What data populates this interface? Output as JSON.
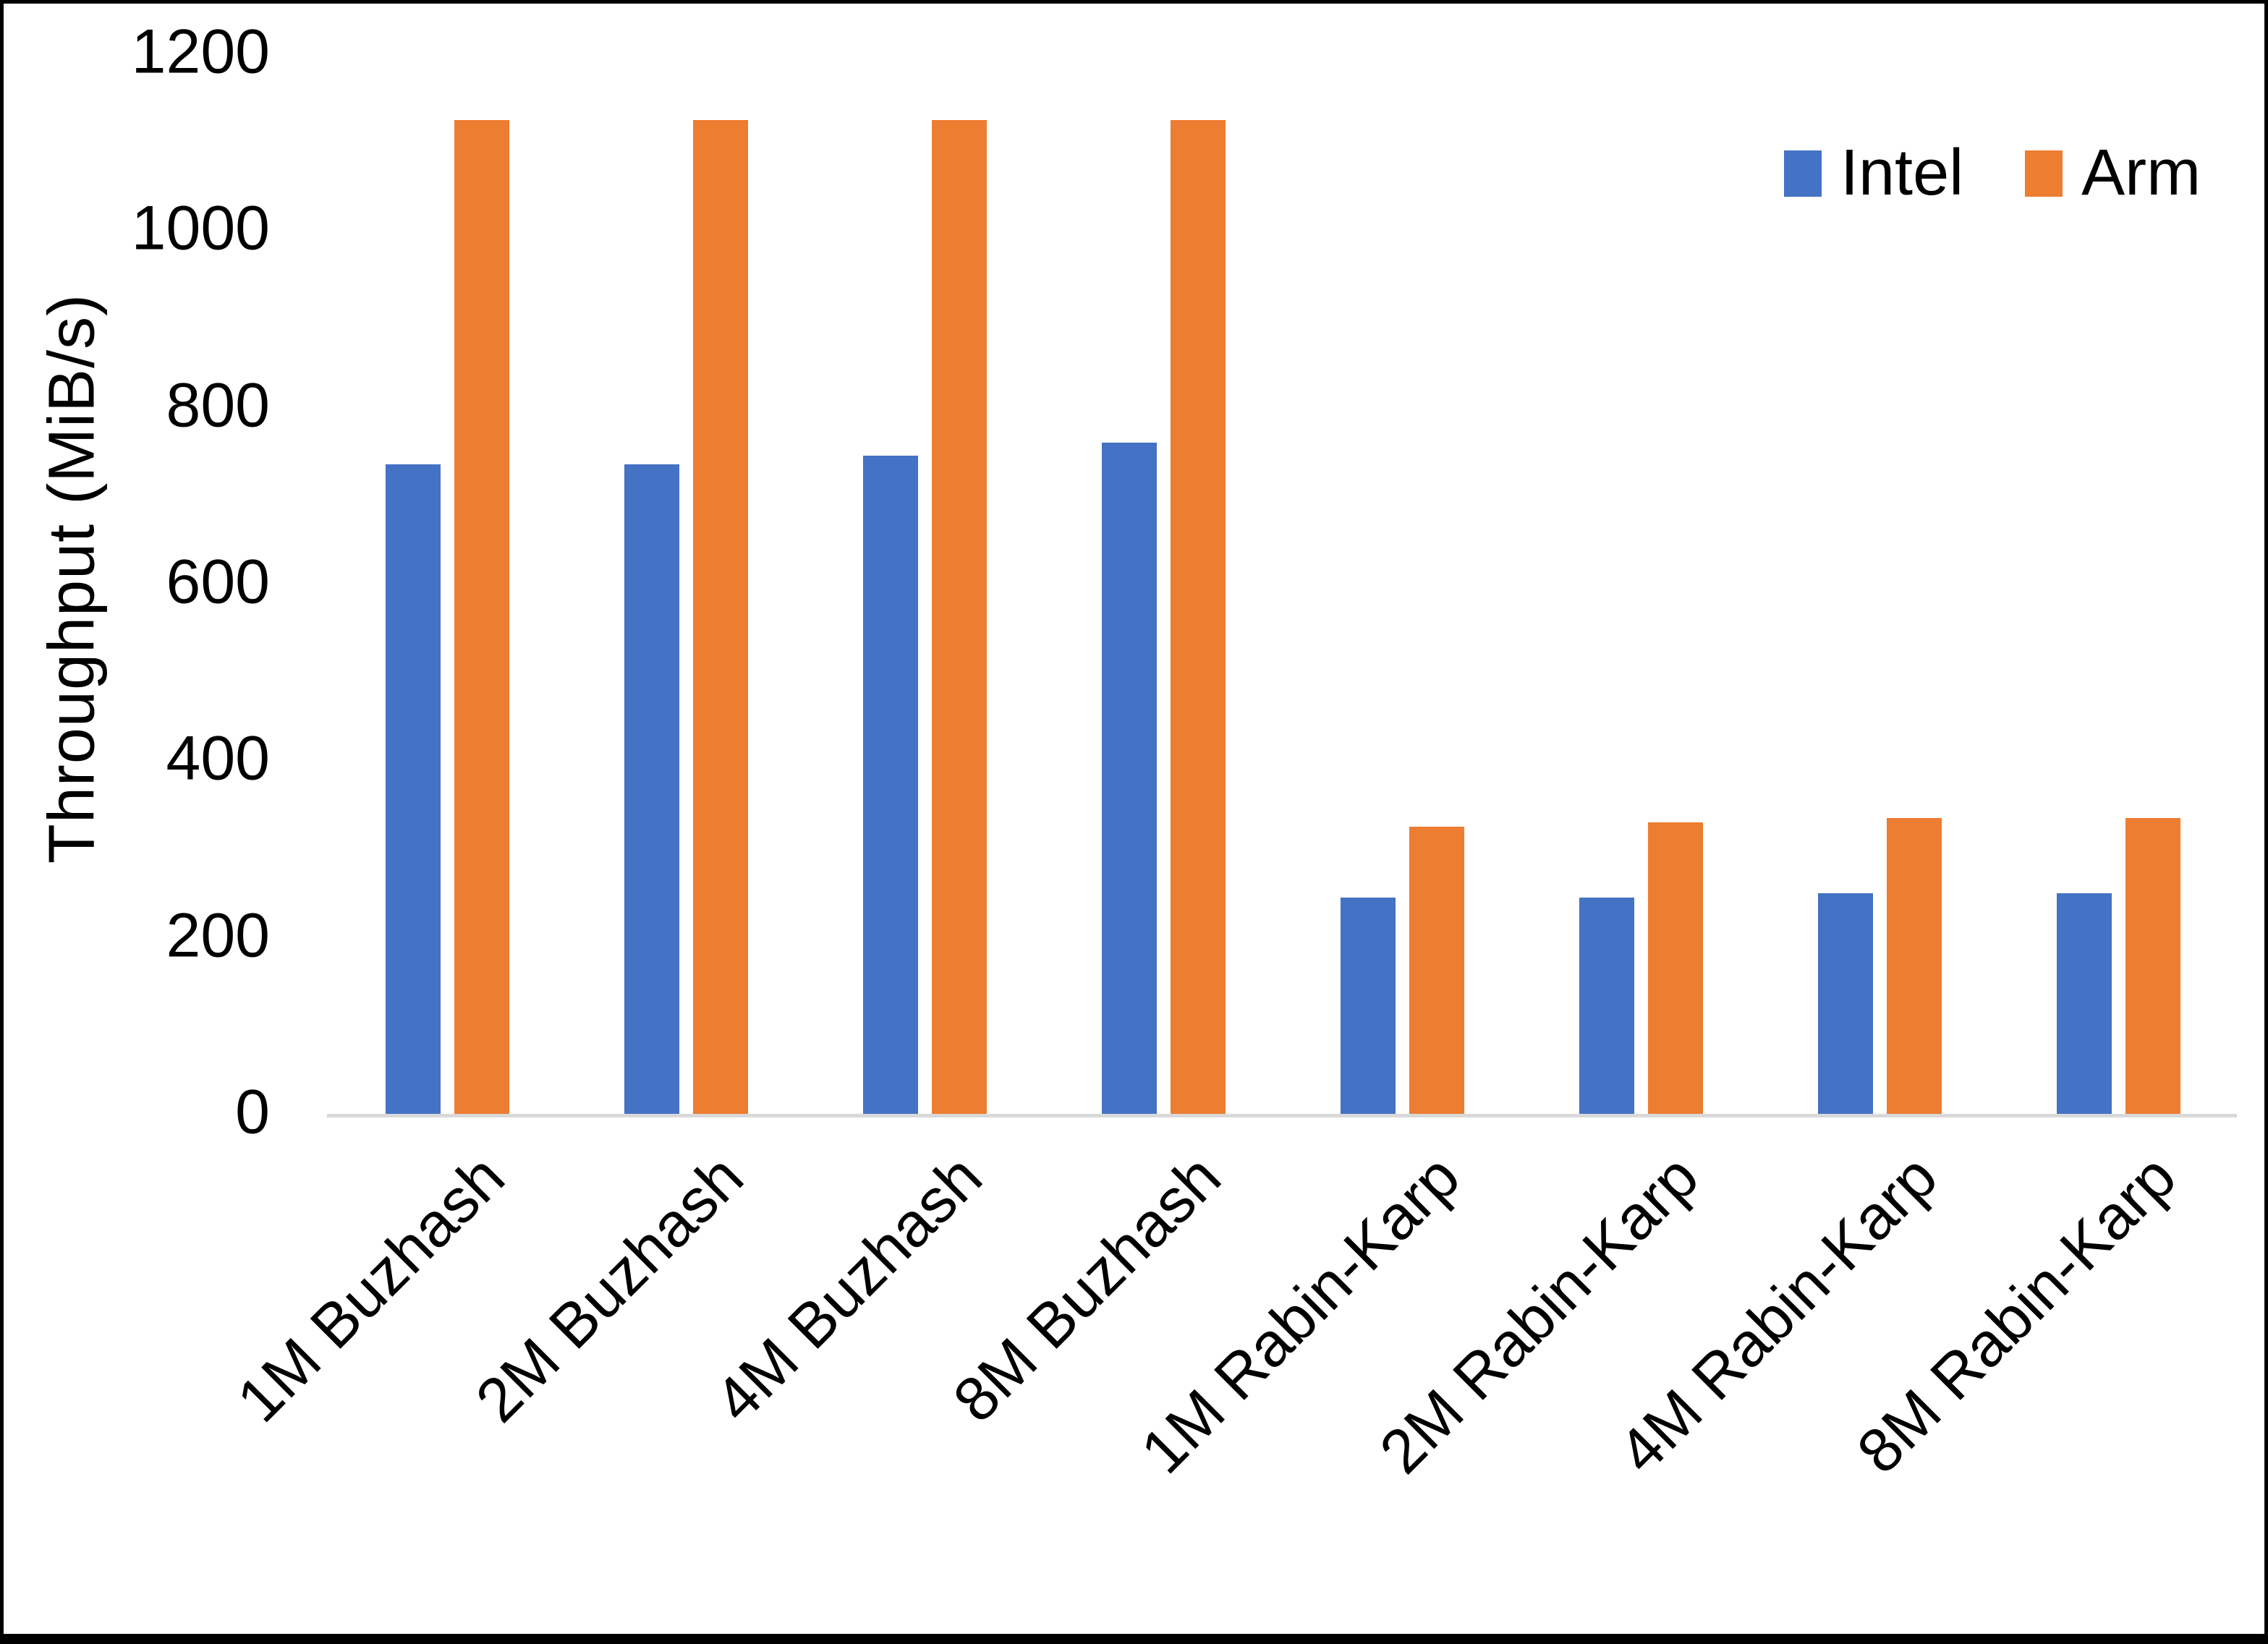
{
  "chart_data": {
    "type": "bar",
    "title": "",
    "categories": [
      "1M Buzhash",
      "2M Buzhash",
      "4M Buzhash",
      "8M Buzhash",
      "1M Rabin-Karp",
      "2M Rabin-Karp",
      "4M Rabin-Karp",
      "8M Rabin-Karp"
    ],
    "series": [
      {
        "name": "Intel",
        "color": "#4472C4",
        "values": [
          735,
          735,
          745,
          760,
          245,
          245,
          250,
          250
        ]
      },
      {
        "name": "Arm",
        "color": "#ED7D31",
        "values": [
          1125,
          1125,
          1125,
          1125,
          325,
          330,
          335,
          335
        ]
      }
    ],
    "xlabel": "",
    "ylabel": "Throughput (MiB/s)",
    "ylim": [
      0,
      1200
    ],
    "yticks": [
      0,
      200,
      400,
      600,
      800,
      1000,
      1200
    ],
    "grid": false,
    "legend_position": "top-right",
    "axis_line_color": "#D9D9D9",
    "text_color": "#000000"
  }
}
